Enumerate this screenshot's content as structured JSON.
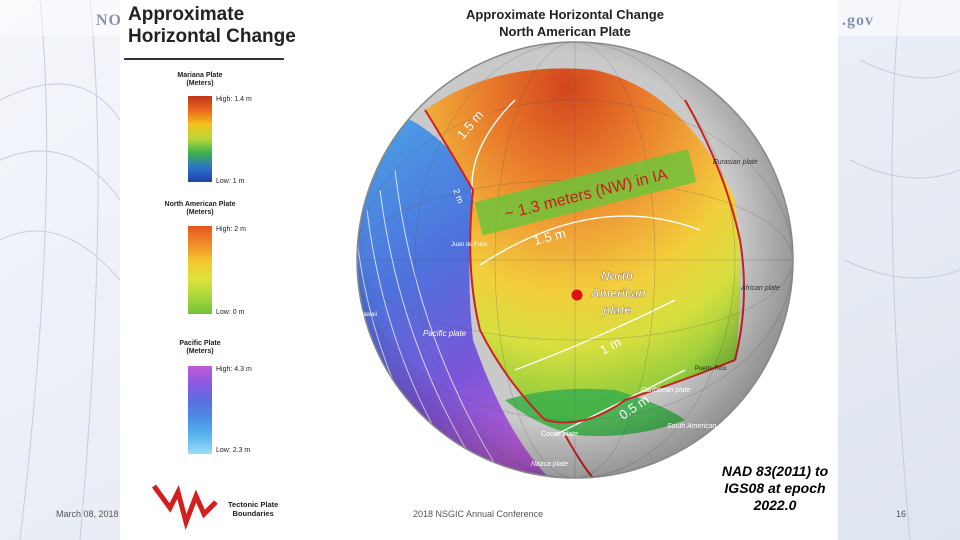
{
  "header": {
    "left_text": "NOAA",
    "right_text": ".gov"
  },
  "legend": {
    "title_line1": "Approximate",
    "title_line2": "Horizontal Change",
    "mariana": {
      "name": "Mariana Plate",
      "unit": "(Meters)",
      "high": "High: 1.4 m",
      "low": "Low: 1 m"
    },
    "north_american": {
      "name": "North American Plate",
      "unit": "(Meters)",
      "high": "High: 2 m",
      "low": "Low: 0 m"
    },
    "pacific": {
      "name": "Pacific Plate",
      "unit": "(Meters)",
      "high": "High: 4.3 m",
      "low": "Low: 2.3 m"
    },
    "boundaries_line1": "Tectonic Plate",
    "boundaries_line2": "Boundaries"
  },
  "map": {
    "title_line1": "Approximate Horizontal Change",
    "title_line2": "North American Plate",
    "annotation": "~ 1.3 meters (NW) in IA",
    "contours": [
      "1.5 m",
      "2 m",
      "1.5 m",
      "1 m",
      "0.5 m"
    ],
    "plate_labels": {
      "north_american_1": "North",
      "north_american_2": "American",
      "north_american_3": "plate",
      "pacific": "Pacific plate",
      "eurasian": "Eurasian plate",
      "african": "African plate",
      "caribbean": "Caribbean plate",
      "south_american": "South American plate",
      "cocos": "Cocos plate",
      "nazca": "Nazca plate",
      "juan_de_fuca": "Juan de Fuca",
      "hawaii": "Hawaii",
      "puerto_rico": "Puerto Rico"
    },
    "colors": {
      "marker": "#e01010",
      "annotation_band": "#6fc33a",
      "boundary": "#cc2222"
    }
  },
  "footer": {
    "date": "March 08, 2018",
    "conference": "2018 NSGIC Annual Conference",
    "page_number": "16"
  },
  "note": {
    "line1": "NAD 83(2011) to",
    "line2": "IGS08 at epoch",
    "line3": "2022.0"
  }
}
